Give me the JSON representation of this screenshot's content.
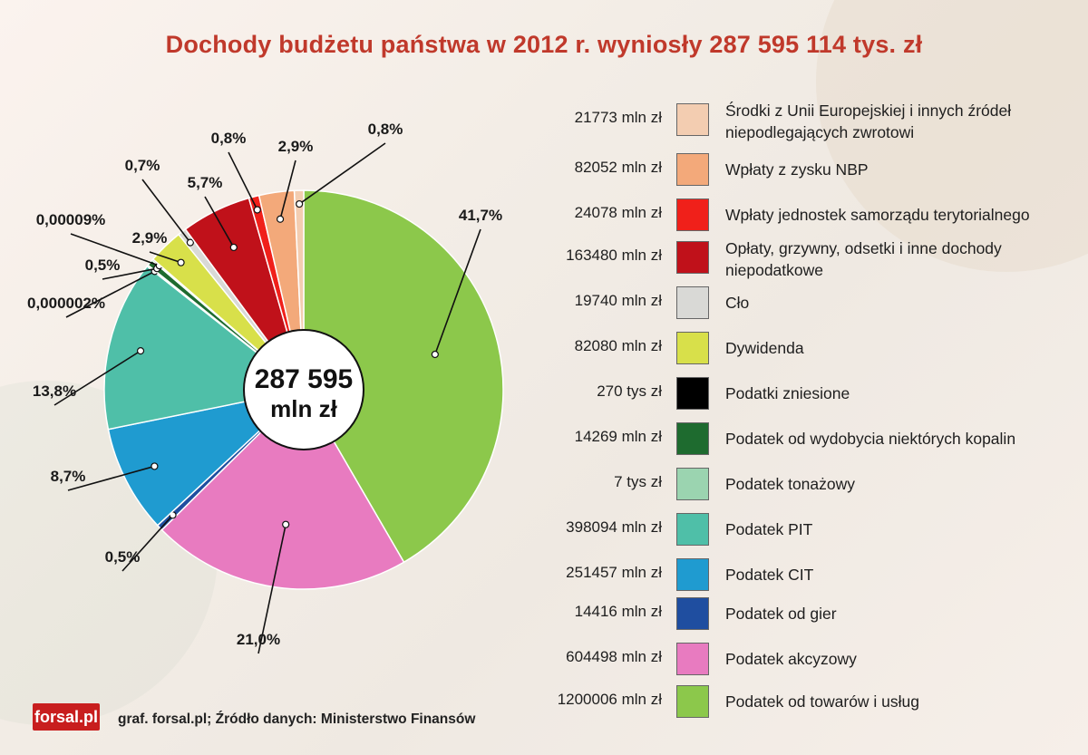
{
  "title": "Dochody budżetu państwa w 2012 r. wyniosły 287 595 114 tys. zł",
  "center": {
    "line1": "287 595",
    "line2": "mln zł"
  },
  "chart_data": {
    "type": "pie",
    "title": "Dochody budżetu państwa w 2012 r. wyniosły 287 595 114 tys. zł",
    "slices": [
      {
        "name": "Podatek od towarów i usług",
        "value_label": "1200006 mln zł",
        "value": 120000.6,
        "pct_label": "41,7%",
        "color": "#8cc84b"
      },
      {
        "name": "Podatek akcyzowy",
        "value_label": "604498 mln zł",
        "value": 60449.8,
        "pct_label": "21,0%",
        "color": "#e87bc0"
      },
      {
        "name": "Podatek od gier",
        "value_label": "14416 mln zł",
        "value": 1441.6,
        "pct_label": "0,5%",
        "color": "#1f4ea0"
      },
      {
        "name": "Podatek CIT",
        "value_label": "251457 mln zł",
        "value": 25145.7,
        "pct_label": "8,7%",
        "color": "#1f9bd0"
      },
      {
        "name": "Podatek PIT",
        "value_label": "398094 mln zł",
        "value": 39809.4,
        "pct_label": "13,8%",
        "color": "#4fbfa8"
      },
      {
        "name": "Podatek tonażowy",
        "value_label": "7 tys zł",
        "value": 0.007,
        "pct_label": "0,000002%",
        "color": "#9bd4b0"
      },
      {
        "name": "Podatek od wydobycia niektórych kopalin",
        "value_label": "14269 mln zł",
        "value": 1426.9,
        "pct_label": "0,5%",
        "color": "#1e6b2f"
      },
      {
        "name": "Podatki zniesione",
        "value_label": "270 tys zł",
        "value": 0.27,
        "pct_label": "0,00009%",
        "color": "#000000"
      },
      {
        "name": "Dywidenda",
        "value_label": "82080 mln zł",
        "value": 8208.0,
        "pct_label": "2,9%",
        "color": "#d8e04a"
      },
      {
        "name": "Cło",
        "value_label": "19740 mln zł",
        "value": 1974.0,
        "pct_label": "0,7%",
        "color": "#d9d9d6"
      },
      {
        "name": "Opłaty, grzywny, odsetki i inne dochody niepodatkowe",
        "value_label": "163480 mln zł",
        "value": 16348.0,
        "pct_label": "5,7%",
        "color": "#c0111a"
      },
      {
        "name": "Wpłaty jednostek samorządu terytorialnego",
        "value_label": "24078 mln zł",
        "value": 2407.8,
        "pct_label": "0,8%",
        "color": "#f0201a"
      },
      {
        "name": "Wpłaty z zysku NBP",
        "value_label": "82052 mln zł",
        "value": 8205.2,
        "pct_label": "2,9%",
        "color": "#f3a97a"
      },
      {
        "name": "Środki z Unii Europejskiej i innych źródeł niepodlegających zwrotowi",
        "value_label": "21773 mln zł",
        "value": 2177.3,
        "pct_label": "0,8%",
        "color": "#f3cdb1"
      }
    ]
  },
  "legend": [
    {
      "value": "21773 mln zł",
      "label": "Środki z Unii Europejskiej i innych źródeł niepodlegających zwrotowi",
      "color": "#f3cdb1"
    },
    {
      "value": "82052 mln zł",
      "label": "Wpłaty z zysku NBP",
      "color": "#f3a97a"
    },
    {
      "value": "24078 mln zł",
      "label": "Wpłaty jednostek samorządu terytorialnego",
      "color": "#f0201a"
    },
    {
      "value": "163480 mln zł",
      "label": "Opłaty, grzywny, odsetki i inne dochody niepodatkowe",
      "color": "#c0111a"
    },
    {
      "value": "19740 mln zł",
      "label": "Cło",
      "color": "#d9d9d6"
    },
    {
      "value": "82080 mln zł",
      "label": "Dywidenda",
      "color": "#d8e04a"
    },
    {
      "value": "270 tys zł",
      "label": "Podatki zniesione",
      "color": "#000000"
    },
    {
      "value": "14269 mln zł",
      "label": "Podatek od wydobycia niektórych kopalin",
      "color": "#1e6b2f"
    },
    {
      "value": "7 tys zł",
      "label": "Podatek tonażowy",
      "color": "#9bd4b0"
    },
    {
      "value": "398094 mln zł",
      "label": "Podatek PIT",
      "color": "#4fbfa8"
    },
    {
      "value": "251457 mln zł",
      "label": "Podatek CIT",
      "color": "#1f9bd0"
    },
    {
      "value": "14416 mln zł",
      "label": "Podatek od gier",
      "color": "#1f4ea0"
    },
    {
      "value": "604498 mln zł",
      "label": "Podatek akcyzowy",
      "color": "#e87bc0"
    },
    {
      "value": "1200006 mln zł",
      "label": "Podatek od towarów i usług",
      "color": "#8cc84b"
    }
  ],
  "footer": {
    "logo": "forsal.pl",
    "source": "graf. forsal.pl; Źródło danych: Ministerstwo Finansów"
  }
}
